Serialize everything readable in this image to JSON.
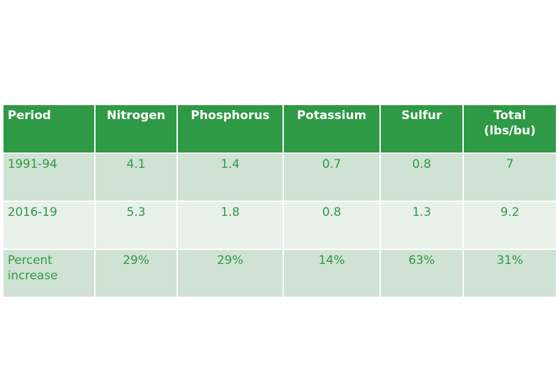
{
  "chart_data": {
    "type": "table",
    "columns": [
      "Period",
      "Nitrogen",
      "Phosphorus",
      "Potassium",
      "Sulfur",
      "Total (lbs/bu)"
    ],
    "rows": [
      [
        "1991-94",
        "4.1",
        "1.4",
        "0.7",
        "0.8",
        "7"
      ],
      [
        "2016-19",
        "5.3",
        "1.8",
        "0.8",
        "1.3",
        "9.2"
      ],
      [
        "Percent increase",
        "29%",
        "29%",
        "14%",
        "63%",
        "31%"
      ]
    ]
  },
  "colors": {
    "header_bg": "#2f9a45",
    "header_text": "#ffffff",
    "body_text": "#2f9a45",
    "row_odd_bg": "#cfe2d3",
    "row_even_bg": "#e8f0ea"
  }
}
